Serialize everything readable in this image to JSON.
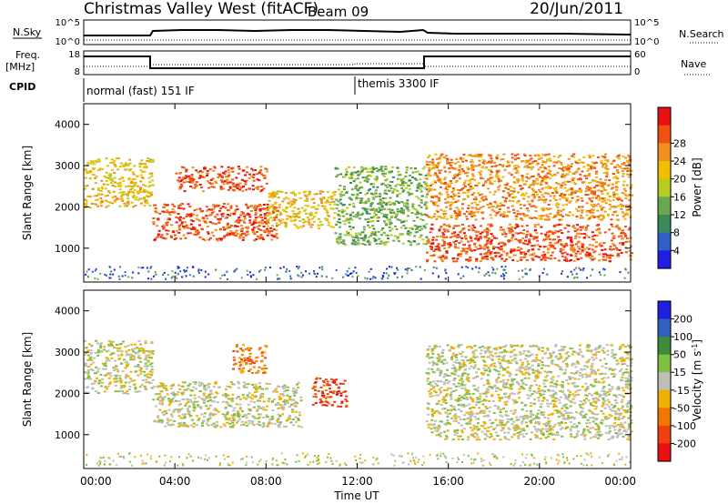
{
  "header": {
    "station": "Christmas Valley West (fitACF)",
    "beam": "Beam 09",
    "date": "20/Jun/2011"
  },
  "scan_panels": {
    "nsky_label": "N.Sky",
    "nsky_ticks": [
      "10^5",
      "10^0"
    ],
    "nsearch_label": "N.Search",
    "nsearch_ticks": [
      "10^5",
      "10^0"
    ],
    "freq_label": "Freq.",
    "freq_unit": "[MHz]",
    "freq_ticks": [
      "18",
      "8"
    ],
    "nave_label": "Nave",
    "nave_ticks": [
      "60",
      "0"
    ],
    "cpid_label": "CPID",
    "cpid_modes": [
      "normal (fast) 151 IF",
      "themis 3300 IF"
    ]
  },
  "colors": {
    "power": [
      "#1f1fe0",
      "#2e60c8",
      "#3a8a5a",
      "#6aa84f",
      "#b5cc20",
      "#f0c000",
      "#f09020",
      "#f05010",
      "#e81010"
    ],
    "velocity": [
      "#1f1fe0",
      "#3060c0",
      "#3c8c3c",
      "#80c040",
      "#bebeb6",
      "#f0b000",
      "#f07800",
      "#f04010",
      "#e81010"
    ]
  },
  "chart_data": [
    {
      "type": "heatmap",
      "name": "power",
      "ylabel": "Slant Range [km]",
      "ylim": [
        180,
        4500
      ],
      "y_ticks": [
        "1000",
        "2000",
        "3000",
        "4000"
      ],
      "xlim_hours": [
        0,
        24
      ],
      "colorbar": {
        "label": "Power [dB]",
        "ticks": [
          "4",
          "8",
          "12",
          "16",
          "20",
          "24",
          "28"
        ]
      },
      "echo_regions_approx": [
        {
          "t_start_h": 0.0,
          "t_end_h": 3.0,
          "range_km": [
            2000,
            3200
          ],
          "level_db": 18
        },
        {
          "t_start_h": 3.0,
          "t_end_h": 8.5,
          "range_km": [
            1200,
            2100
          ],
          "level_db": 28
        },
        {
          "t_start_h": 4.0,
          "t_end_h": 8.0,
          "range_km": [
            2400,
            3000
          ],
          "level_db": 26
        },
        {
          "t_start_h": 8.0,
          "t_end_h": 11.0,
          "range_km": [
            1500,
            2400
          ],
          "level_db": 20
        },
        {
          "t_start_h": 11.0,
          "t_end_h": 15.0,
          "range_km": [
            1100,
            3000
          ],
          "level_db": 12
        },
        {
          "t_start_h": 15.0,
          "t_end_h": 24.0,
          "range_km": [
            700,
            1600
          ],
          "level_db": 26
        },
        {
          "t_start_h": 15.0,
          "t_end_h": 24.0,
          "range_km": [
            1700,
            3300
          ],
          "level_db": 24
        }
      ]
    },
    {
      "type": "heatmap",
      "name": "velocity",
      "ylabel": "Slant Range [km]",
      "ylim": [
        180,
        4500
      ],
      "y_ticks": [
        "1000",
        "2000",
        "3000",
        "4000"
      ],
      "xlim_hours": [
        0,
        24
      ],
      "x_ticks": [
        "00:00",
        "04:00",
        "08:00",
        "12:00",
        "16:00",
        "20:00",
        "00:00"
      ],
      "xlabel": "Time UT",
      "colorbar": {
        "label": "Velocity [m s",
        "unit_exp": "-1",
        "ticks": [
          "200",
          "100",
          "50",
          "15",
          "-15",
          "-50",
          "-100",
          "-200"
        ]
      },
      "echo_regions_approx": [
        {
          "t_start_h": 0.0,
          "t_end_h": 3.0,
          "range_km": [
            2000,
            3300
          ],
          "velocity_ms": 0
        },
        {
          "t_start_h": 3.0,
          "t_end_h": 9.5,
          "range_km": [
            1200,
            2300
          ],
          "velocity_ms": -5
        },
        {
          "t_start_h": 6.5,
          "t_end_h": 8.0,
          "range_km": [
            2500,
            3200
          ],
          "velocity_ms": -80
        },
        {
          "t_start_h": 10.0,
          "t_end_h": 11.5,
          "range_km": [
            1700,
            2400
          ],
          "velocity_ms": -150
        },
        {
          "t_start_h": 15.0,
          "t_end_h": 24.0,
          "range_km": [
            900,
            3200
          ],
          "velocity_ms": 0
        }
      ]
    }
  ]
}
